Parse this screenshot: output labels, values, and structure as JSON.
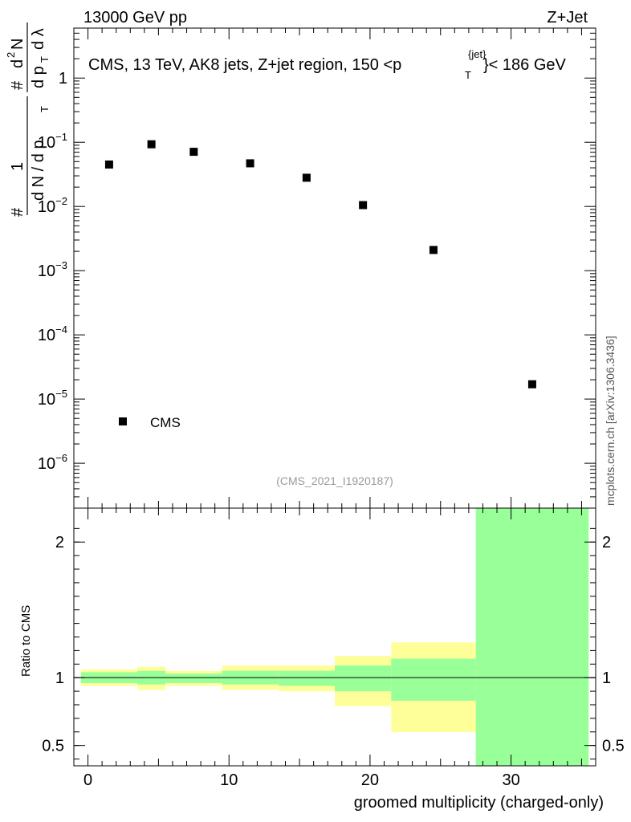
{
  "header": {
    "left": "13000 GeV pp",
    "right": "Z+Jet"
  },
  "side_label": "mcplots.cern.ch [arXiv:1306.3436]",
  "watermark": "(CMS_2021_I1920187)",
  "colors": {
    "band_outer": "#ffff99",
    "band_inner": "#99ff99",
    "marker": "#000000"
  },
  "chart_data": [
    {
      "type": "scatter",
      "title": "CMS, 13 TeV, AK8 jets, Z+jet region, 150 < p_T^{jet} < 186 GeV",
      "title_parts": {
        "main": "CMS, 13 TeV, AK8 jets, Z+jet region, 150 <p",
        "sub": "T",
        "sup": "{jet}",
        "tail": "}< 186 GeV"
      },
      "ylabel": "1/(dN/dpT) d²N/(dpT dλ)",
      "ylabel_parts": {
        "hash": "#",
        "one": "1",
        "den": "d N / d p",
        "sub": "T",
        "num": "d",
        "sup2": "2",
        "numN": "N",
        "den2": "d p",
        "den2tail": "d λ"
      },
      "yscale": "log",
      "ylim": [
        2e-07,
        6
      ],
      "xlim": [
        -1,
        36
      ],
      "yticks": [
        {
          "v": 1,
          "base": "1",
          "exp": ""
        },
        {
          "v": 0.1,
          "base": "10",
          "exp": "−1"
        },
        {
          "v": 0.01,
          "base": "10",
          "exp": "−2"
        },
        {
          "v": 0.001,
          "base": "10",
          "exp": "−3"
        },
        {
          "v": 0.0001,
          "base": "10",
          "exp": "−4"
        },
        {
          "v": 1e-05,
          "base": "10",
          "exp": "−5"
        },
        {
          "v": 1e-06,
          "base": "10",
          "exp": "−6"
        }
      ],
      "series": [
        {
          "name": "CMS",
          "x": [
            1.5,
            4.5,
            7.5,
            11.5,
            15.5,
            19.5,
            24.5,
            31.5
          ],
          "y": [
            0.045,
            0.093,
            0.071,
            0.047,
            0.028,
            0.0105,
            0.0021,
            1.7e-05
          ]
        }
      ],
      "legend": {
        "label": "CMS",
        "position": "bottom-left"
      }
    },
    {
      "type": "area",
      "ylabel": "Ratio to CMS",
      "xlabel": "groomed multiplicity (charged-only)",
      "ylim": [
        0.35,
        2.25
      ],
      "xlim": [
        -1,
        36
      ],
      "xticks": [
        0,
        10,
        20,
        30
      ],
      "yticks": [
        {
          "v": 0.5,
          "label": "0.5"
        },
        {
          "v": 1,
          "label": "1"
        },
        {
          "v": 2,
          "label": "2"
        }
      ],
      "bins": [
        {
          "x0": -0.5,
          "x1": 3.5,
          "outer": [
            0.94,
            1.06
          ],
          "inner": [
            0.96,
            1.04
          ]
        },
        {
          "x0": 3.5,
          "x1": 5.5,
          "outer": [
            0.91,
            1.08
          ],
          "inner": [
            0.95,
            1.05
          ]
        },
        {
          "x0": 5.5,
          "x1": 9.5,
          "outer": [
            0.94,
            1.05
          ],
          "inner": [
            0.96,
            1.03
          ]
        },
        {
          "x0": 9.5,
          "x1": 13.5,
          "outer": [
            0.91,
            1.09
          ],
          "inner": [
            0.95,
            1.05
          ]
        },
        {
          "x0": 13.5,
          "x1": 17.5,
          "outer": [
            0.9,
            1.09
          ],
          "inner": [
            0.94,
            1.05
          ]
        },
        {
          "x0": 17.5,
          "x1": 21.5,
          "outer": [
            0.79,
            1.16
          ],
          "inner": [
            0.9,
            1.09
          ]
        },
        {
          "x0": 21.5,
          "x1": 27.5,
          "outer": [
            0.6,
            1.26
          ],
          "inner": [
            0.83,
            1.14
          ]
        },
        {
          "x0": 27.5,
          "x1": 35.5,
          "outer": [
            0.35,
            2.25
          ],
          "inner": [
            0.35,
            2.25
          ]
        }
      ],
      "reference_line": 1
    }
  ]
}
